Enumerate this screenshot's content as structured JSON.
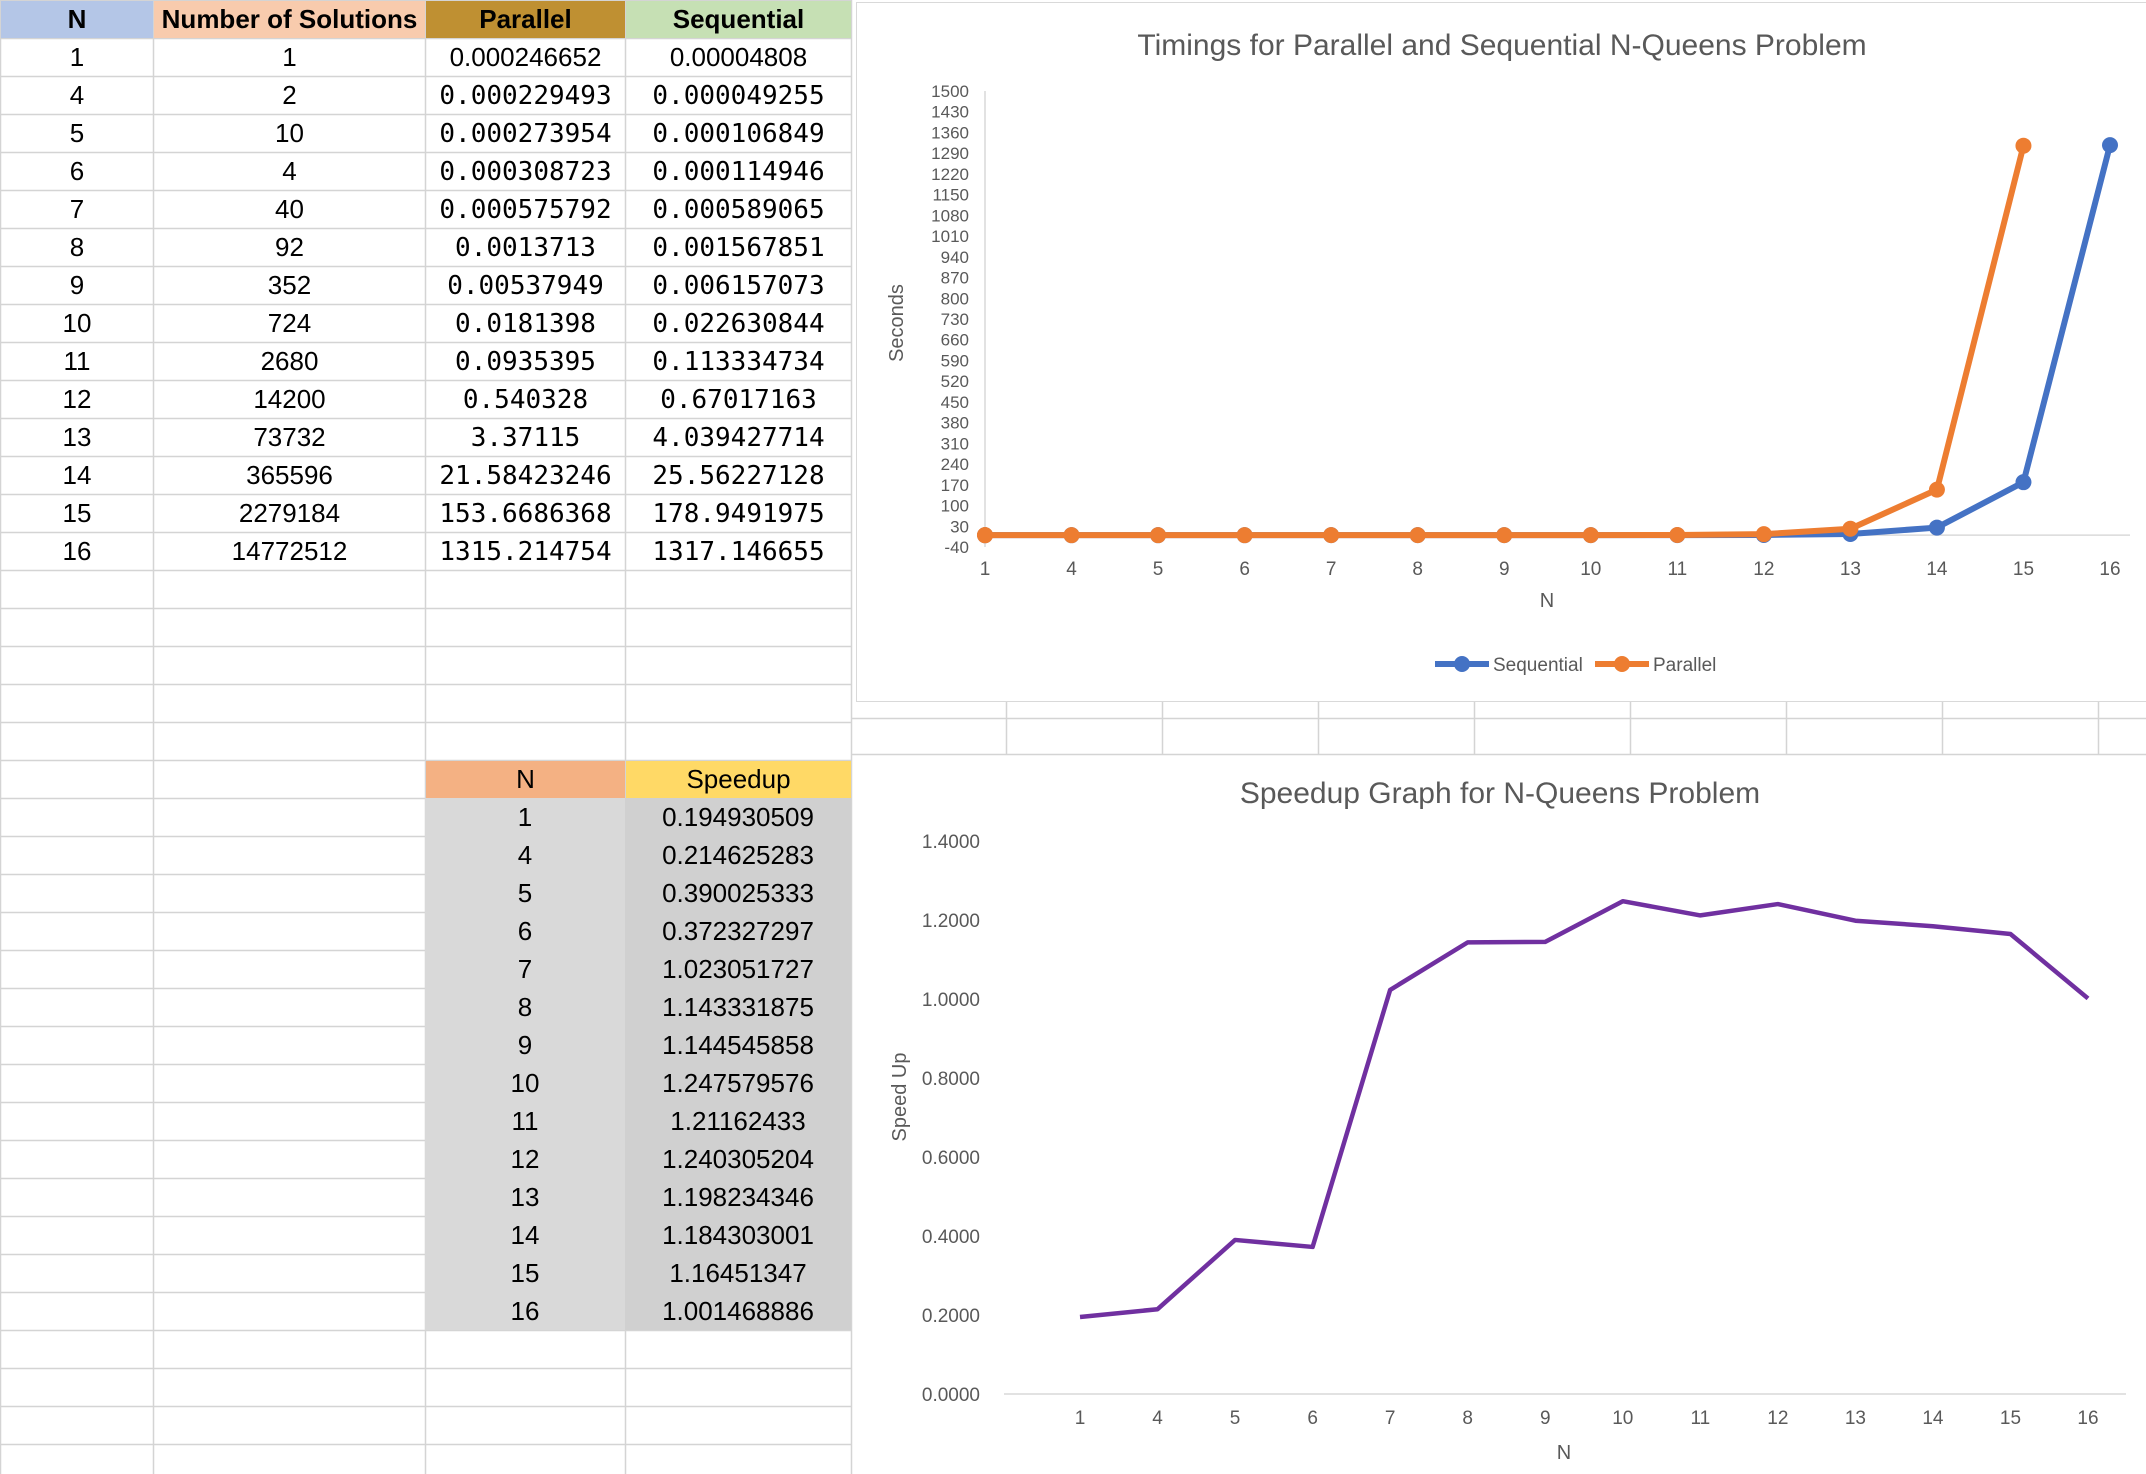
{
  "table": {
    "headers": [
      "N",
      "Number of Solutions",
      "Parallel",
      "Sequential"
    ],
    "header_colors": [
      "#b4c6e7",
      "#f8cbad",
      "#bf9032",
      "#c6e0b4"
    ],
    "rows": [
      [
        "1",
        "1",
        "0.000246652",
        "0.00004808"
      ],
      [
        "4",
        "2",
        "0.000229493",
        "0.000049255"
      ],
      [
        "5",
        "10",
        "0.000273954",
        "0.000106849"
      ],
      [
        "6",
        "4",
        "0.000308723",
        "0.000114946"
      ],
      [
        "7",
        "40",
        "0.000575792",
        "0.000589065"
      ],
      [
        "8",
        "92",
        "0.0013713",
        "0.001567851"
      ],
      [
        "9",
        "352",
        "0.00537949",
        "0.006157073"
      ],
      [
        "10",
        "724",
        "0.0181398",
        "0.022630844"
      ],
      [
        "11",
        "2680",
        "0.0935395",
        "0.113334734"
      ],
      [
        "12",
        "14200",
        "0.540328",
        "0.67017163"
      ],
      [
        "13",
        "73732",
        "3.37115",
        "4.039427714"
      ],
      [
        "14",
        "365596",
        "21.58423246",
        "25.56227128"
      ],
      [
        "15",
        "2279184",
        "153.6686368",
        "178.9491975"
      ],
      [
        "16",
        "14772512",
        "1315.214754",
        "1317.146655"
      ]
    ]
  },
  "speedup_table": {
    "headers": [
      "N",
      "Speedup"
    ],
    "header_colors": [
      "#f4b183",
      "#ffd966"
    ],
    "rows": [
      [
        "1",
        "0.194930509"
      ],
      [
        "4",
        "0.214625283"
      ],
      [
        "5",
        "0.390025333"
      ],
      [
        "6",
        "0.372327297"
      ],
      [
        "7",
        "1.023051727"
      ],
      [
        "8",
        "1.143331875"
      ],
      [
        "9",
        "1.144545858"
      ],
      [
        "10",
        "1.247579576"
      ],
      [
        "11",
        "1.21162433"
      ],
      [
        "12",
        "1.240305204"
      ],
      [
        "13",
        "1.198234346"
      ],
      [
        "14",
        "1.184303001"
      ],
      [
        "15",
        "1.16451347"
      ],
      [
        "16",
        "1.001468886"
      ]
    ]
  },
  "chart_data": [
    {
      "type": "line",
      "title": "Timings for Parallel and Sequential N-Queens Problem",
      "xlabel": "N",
      "ylabel": "Seconds",
      "categories": [
        "1",
        "4",
        "5",
        "6",
        "7",
        "8",
        "9",
        "10",
        "11",
        "12",
        "13",
        "14",
        "15",
        "16"
      ],
      "series": [
        {
          "name": "Sequential",
          "color": "#4472c4",
          "values": [
            4.808e-05,
            4.9255e-05,
            0.000106849,
            0.000114946,
            0.000589065,
            0.001567851,
            0.006157073,
            0.022630844,
            0.113334734,
            0.67017163,
            4.039427714,
            25.56227128,
            178.9491975,
            1317.146655
          ]
        },
        {
          "name": "Parallel",
          "color": "#ed7d31",
          "values": [
            0.000246652,
            0.000229493,
            0.000273954,
            0.000308723,
            0.000575792,
            0.0013713,
            0.00537949,
            0.0181398,
            0.0935395,
            0.540328,
            3.37115,
            21.58423246,
            153.6686368,
            1315.214754
          ]
        }
      ],
      "y_ticks": [
        "1500",
        "1430",
        "1360",
        "1290",
        "1220",
        "1150",
        "1080",
        "1010",
        "940",
        "870",
        "800",
        "730",
        "660",
        "590",
        "520",
        "450",
        "380",
        "310",
        "240",
        "170",
        "100",
        "30",
        "-40"
      ],
      "ylim": [
        -40,
        1500
      ],
      "grid": false,
      "legend": "bottom",
      "note_x_values_shown": "Parallel series rendered shifted one category left as in the screenshot"
    },
    {
      "type": "line",
      "title": "Speedup Graph for N-Queens Problem",
      "xlabel": "N",
      "ylabel": "Speed Up",
      "categories": [
        "1",
        "4",
        "5",
        "6",
        "7",
        "8",
        "9",
        "10",
        "11",
        "12",
        "13",
        "14",
        "15",
        "16"
      ],
      "series": [
        {
          "color": "#7030a0",
          "values": [
            0.194930509,
            0.214625283,
            0.390025333,
            0.372327297,
            1.023051727,
            1.143331875,
            1.144545858,
            1.247579576,
            1.21162433,
            1.240305204,
            1.198234346,
            1.184303001,
            1.16451347,
            1.001468886
          ]
        }
      ],
      "y_ticks": [
        "1.4000",
        "1.2000",
        "1.0000",
        "0.8000",
        "0.6000",
        "0.4000",
        "0.2000",
        "0.0000"
      ],
      "ylim": [
        0,
        1.4
      ],
      "grid": false
    }
  ]
}
